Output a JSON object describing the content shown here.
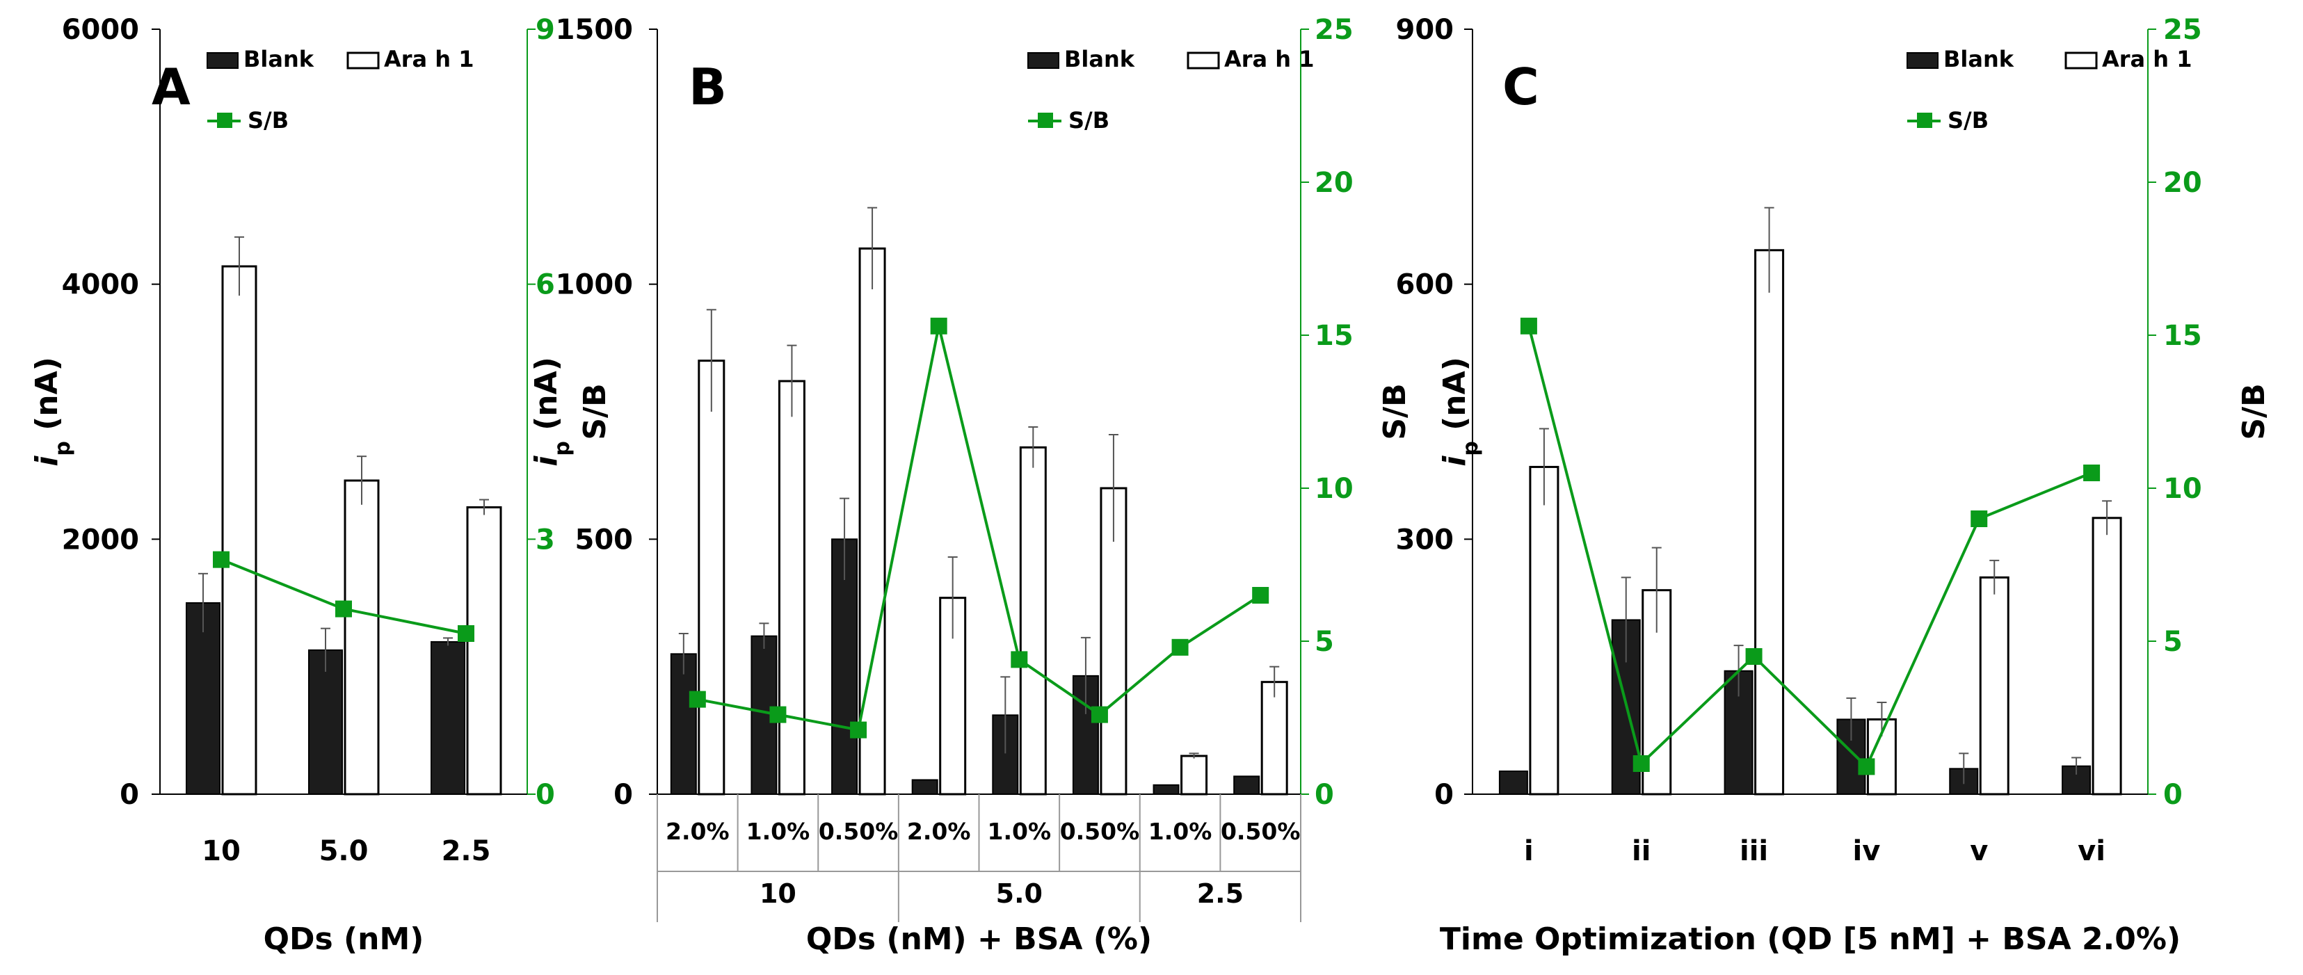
{
  "colors": {
    "blank": "#1c1c1c",
    "ara": "#ffffff",
    "sb": "#0a9b1a",
    "axis": "#000000"
  },
  "legend": {
    "blank": "Blank",
    "ara": "Ara h 1",
    "sb": "S/B"
  },
  "chart_data": [
    {
      "type": "bar",
      "panel_label": "A",
      "ylabel": "i_p (nA)",
      "ylabel_main": "i",
      "ylabel_sub": "p",
      "ylabel_unit": " (nA)",
      "y2label": "S/B",
      "ylim": [
        0,
        6000
      ],
      "y2lim": [
        0,
        9
      ],
      "yticks": [
        "0",
        "2000",
        "4000",
        "6000"
      ],
      "y2ticks": [
        "0",
        "3",
        "6",
        "9"
      ],
      "xlabel": "QDs (nM)",
      "categories": [
        "10",
        "5.0",
        "2.5"
      ],
      "groups": [],
      "series": [
        {
          "name": "Blank",
          "values": [
            1500,
            1130,
            1195
          ],
          "errors": [
            230,
            170,
            30
          ]
        },
        {
          "name": "Ara h 1",
          "values": [
            4140,
            2460,
            2250
          ],
          "errors": [
            230,
            190,
            60
          ]
        },
        {
          "name": "S/B",
          "axis": "right",
          "values": [
            2.76,
            2.18,
            1.89
          ]
        }
      ]
    },
    {
      "type": "bar",
      "panel_label": "B",
      "ylabel": "i_p (nA)",
      "ylabel_main": "i",
      "ylabel_sub": "p",
      "ylabel_unit": " (nA)",
      "y2label": "S/B",
      "ylim": [
        0,
        1500
      ],
      "y2lim": [
        0,
        25
      ],
      "yticks": [
        "0",
        "500",
        "1000",
        "1500"
      ],
      "y2ticks": [
        "0",
        "5",
        "10",
        "15",
        "20",
        "25"
      ],
      "xlabel": "QDs (nM) + BSA (%)",
      "categories": [
        "2.0%",
        "1.0%",
        "0.50%",
        "2.0%",
        "1.0%",
        "0.50%",
        "1.0%",
        "0.50%"
      ],
      "groups": [
        {
          "label": "10",
          "span": 3
        },
        {
          "label": "5.0",
          "span": 3
        },
        {
          "label": "2.5",
          "span": 2
        }
      ],
      "series": [
        {
          "name": "Blank",
          "values": [
            275,
            310,
            500,
            28,
            155,
            232,
            18,
            35
          ],
          "errors": [
            40,
            25,
            80,
            0,
            75,
            75,
            0,
            0
          ]
        },
        {
          "name": "Ara h 1",
          "values": [
            850,
            810,
            1070,
            385,
            680,
            600,
            75,
            220
          ],
          "errors": [
            100,
            70,
            80,
            80,
            40,
            105,
            5,
            30
          ]
        },
        {
          "name": "S/B",
          "axis": "right",
          "values": [
            3.1,
            2.6,
            2.1,
            15.3,
            4.4,
            2.6,
            4.8,
            6.5
          ]
        }
      ]
    },
    {
      "type": "bar",
      "panel_label": "C",
      "ylabel": "i_p (nA)",
      "ylabel_main": "i",
      "ylabel_sub": "p",
      "ylabel_unit": " (nA)",
      "y2label": "S/B",
      "ylim": [
        0,
        900
      ],
      "y2lim": [
        0,
        25
      ],
      "yticks": [
        "0",
        "300",
        "600",
        "900"
      ],
      "y2ticks": [
        "0",
        "5",
        "10",
        "15",
        "20",
        "25"
      ],
      "xlabel": "Time Optimization (QD [5 nM] + BSA 2.0%)",
      "categories": [
        "i",
        "ii",
        "iii",
        "iv",
        "v",
        "vi"
      ],
      "groups": [],
      "series": [
        {
          "name": "Blank",
          "values": [
            27,
            205,
            145,
            88,
            30,
            33
          ],
          "errors": [
            0,
            50,
            30,
            25,
            18,
            10
          ]
        },
        {
          "name": "Ara h 1",
          "values": [
            385,
            240,
            640,
            88,
            255,
            325
          ],
          "errors": [
            45,
            50,
            50,
            20,
            20,
            20
          ]
        },
        {
          "name": "S/B",
          "axis": "right",
          "values": [
            15.3,
            1.0,
            4.5,
            0.9,
            9.0,
            10.5
          ]
        }
      ]
    }
  ]
}
